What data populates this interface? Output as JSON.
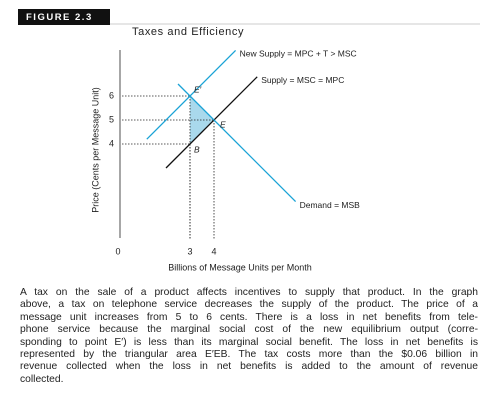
{
  "figure_label": "FIGURE 2.3",
  "chart_data": {
    "type": "line",
    "title": "Taxes and Efficiency",
    "x_label": "Billions of Message Units per Month",
    "y_label": "Price (Cents per Message Unit)",
    "xlim": [
      0,
      9
    ],
    "ylim": [
      0,
      8
    ],
    "xticks": [
      0,
      3,
      4
    ],
    "yticks": [
      4,
      5,
      6
    ],
    "series": [
      {
        "name": "New Supply = MPC + T > MSC",
        "color": "#1ba3d6",
        "x": [
          1.2,
          4.9
        ],
        "values": [
          4.2,
          7.9
        ]
      },
      {
        "name": "Supply = MSC = MPC",
        "color": "#111111",
        "x": [
          2,
          5.8
        ],
        "values": [
          3,
          6.8
        ]
      },
      {
        "name": "Demand = MSB",
        "color": "#1ba3d6",
        "x": [
          2.5,
          7.4
        ],
        "values": [
          6.5,
          1.6
        ]
      }
    ],
    "points": [
      {
        "label": "E′",
        "x": 3,
        "y": 6
      },
      {
        "label": "E",
        "x": 4,
        "y": 5
      },
      {
        "label": "B",
        "x": 3,
        "y": 4
      }
    ],
    "shade_color": "#a9d9ec"
  },
  "caption": [
    "A tax on the sale of a product affects incentives to supply that product. In the graph",
    "above, a tax on telephone service decreases the supply of the product. The price of a",
    "message unit increases from 5 to 6 cents. There is a loss in net benefits from tele-",
    "phone service because the marginal social cost of the new equilibrium output (corre-",
    "sponding to point E′) is less than its marginal social benefit. The loss in net benefits is",
    "represented by the triangular area E′EB. The tax costs more than the $0.06 billion in",
    "revenue collected when the loss in net benefits is added to the amount of revenue",
    "collected."
  ]
}
